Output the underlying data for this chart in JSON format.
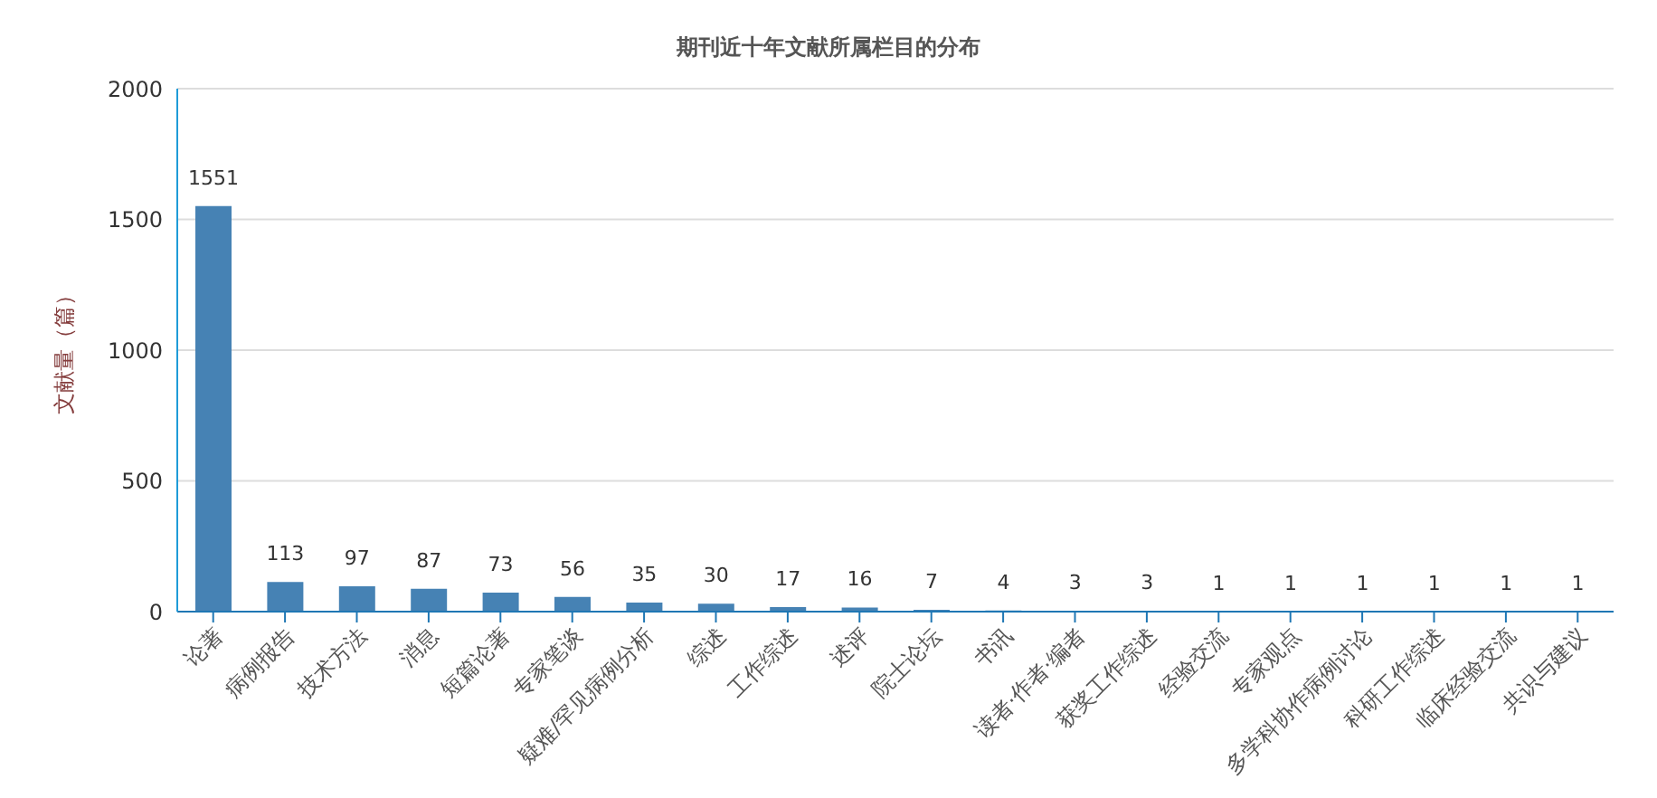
{
  "chart_data": {
    "type": "bar",
    "title": "期刊近十年文献所属栏目的分布",
    "ylabel": "文献量（篇）",
    "categories": [
      "论著",
      "病例报告",
      "技术方法",
      "消息",
      "短篇论著",
      "专家笔谈",
      "疑难/罕见病例分析",
      "综述",
      "工作综述",
      "述评",
      "院士论坛",
      "书讯",
      "读者·作者·编者",
      "获奖工作综述",
      "经验交流",
      "专家观点",
      "多学科协作病例讨论",
      "科研工作综述",
      "临床经验交流",
      "共识与建议"
    ],
    "values": [
      1551,
      113,
      97,
      87,
      73,
      56,
      35,
      30,
      17,
      16,
      7,
      4,
      3,
      3,
      1,
      1,
      1,
      1,
      1,
      1
    ],
    "color": "#4682b4",
    "ylim": [
      0,
      2000
    ],
    "yticks": [
      0,
      500,
      1000,
      1500,
      2000
    ],
    "grid": "y",
    "data_labels": true
  }
}
